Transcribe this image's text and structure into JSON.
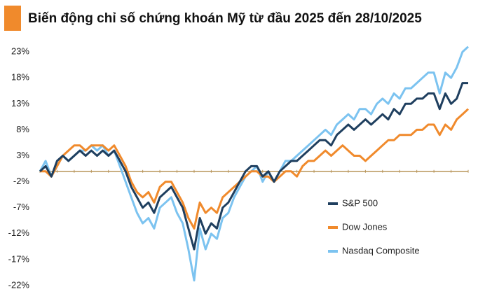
{
  "chart_data": {
    "type": "line",
    "title": "Biến động chỉ số chứng khoán Mỹ từ đầu 2025 đến 28/10/2025",
    "categories": [
      null,
      null,
      null,
      null,
      null,
      null,
      null,
      null,
      null,
      null,
      null,
      null,
      null,
      null,
      null,
      null,
      null,
      null,
      null,
      null,
      null,
      null,
      null,
      null,
      null,
      null,
      null,
      null,
      null,
      null,
      null,
      null,
      null,
      null,
      null,
      null,
      null,
      null,
      null,
      null,
      null,
      null,
      null,
      null,
      null,
      null,
      null,
      null,
      null,
      null,
      null,
      null,
      null,
      null,
      null,
      null,
      null,
      null,
      null,
      null,
      null,
      null,
      null,
      null,
      null,
      null,
      null,
      null,
      null,
      null,
      null,
      null,
      null,
      null,
      null,
      null
    ],
    "series": [
      {
        "name": "S&P 500",
        "color": "#1f3f5f",
        "values": [
          0,
          1,
          -1,
          2,
          3,
          2,
          3,
          4,
          3,
          4,
          3,
          4,
          3,
          4,
          2,
          0,
          -3,
          -5,
          -7,
          -6,
          -8,
          -5,
          -4,
          -3,
          -5,
          -7,
          -11,
          -15,
          -9,
          -12,
          -10,
          -11,
          -7,
          -6,
          -4,
          -2,
          0,
          1,
          1,
          -1,
          0,
          -2,
          0,
          1,
          2,
          2,
          3,
          4,
          5,
          6,
          6,
          5,
          7,
          8,
          9,
          8,
          9,
          10,
          9,
          10,
          11,
          10,
          12,
          11,
          13,
          13,
          14,
          14,
          15,
          15,
          12,
          15,
          13,
          14,
          17,
          17
        ]
      },
      {
        "name": "Dow Jones",
        "color": "#f08a2c",
        "values": [
          0,
          0,
          -1,
          1,
          3,
          4,
          5,
          5,
          4,
          5,
          5,
          5,
          4,
          5,
          3,
          1,
          -2,
          -4,
          -5,
          -4,
          -6,
          -3,
          -2,
          -2,
          -4,
          -6,
          -9,
          -11,
          -6,
          -8,
          -7,
          -8,
          -5,
          -4,
          -3,
          -2,
          -1,
          0,
          0,
          -1,
          -1,
          -2,
          -1,
          0,
          0,
          -1,
          1,
          2,
          2,
          3,
          4,
          3,
          4,
          5,
          4,
          3,
          3,
          2,
          3,
          4,
          5,
          6,
          6,
          7,
          7,
          7,
          8,
          8,
          9,
          9,
          7,
          9,
          8,
          10,
          11,
          12
        ]
      },
      {
        "name": "Nasdaq Composite",
        "color": "#7cc3f0",
        "values": [
          0,
          2,
          -1,
          1,
          3,
          2,
          3,
          4,
          4,
          5,
          4,
          5,
          3,
          4,
          1,
          -2,
          -5,
          -8,
          -10,
          -9,
          -11,
          -7,
          -6,
          -5,
          -8,
          -10,
          -15,
          -21,
          -11,
          -15,
          -12,
          -13,
          -9,
          -8,
          -5,
          -3,
          -1,
          0,
          1,
          -2,
          0,
          -2,
          0,
          2,
          2,
          3,
          4,
          5,
          6,
          7,
          8,
          7,
          9,
          10,
          11,
          10,
          12,
          12,
          11,
          13,
          14,
          13,
          15,
          14,
          16,
          16,
          17,
          18,
          19,
          19,
          15,
          19,
          18,
          20,
          23,
          24
        ]
      }
    ],
    "ylim": [
      -22,
      24.5
    ],
    "yticks": [
      {
        "value": 23,
        "label": "23%"
      },
      {
        "value": 18,
        "label": "18%"
      },
      {
        "value": 13,
        "label": "13%"
      },
      {
        "value": 8,
        "label": "8%"
      },
      {
        "value": 3,
        "label": "3%"
      },
      {
        "value": -2,
        "label": "-2%"
      },
      {
        "value": -7,
        "label": "-7%"
      },
      {
        "value": -12,
        "label": "-12%"
      },
      {
        "value": -17,
        "label": "-17%"
      },
      {
        "value": -22,
        "label": "-22%"
      }
    ],
    "grid": false,
    "legend": "lower right"
  }
}
